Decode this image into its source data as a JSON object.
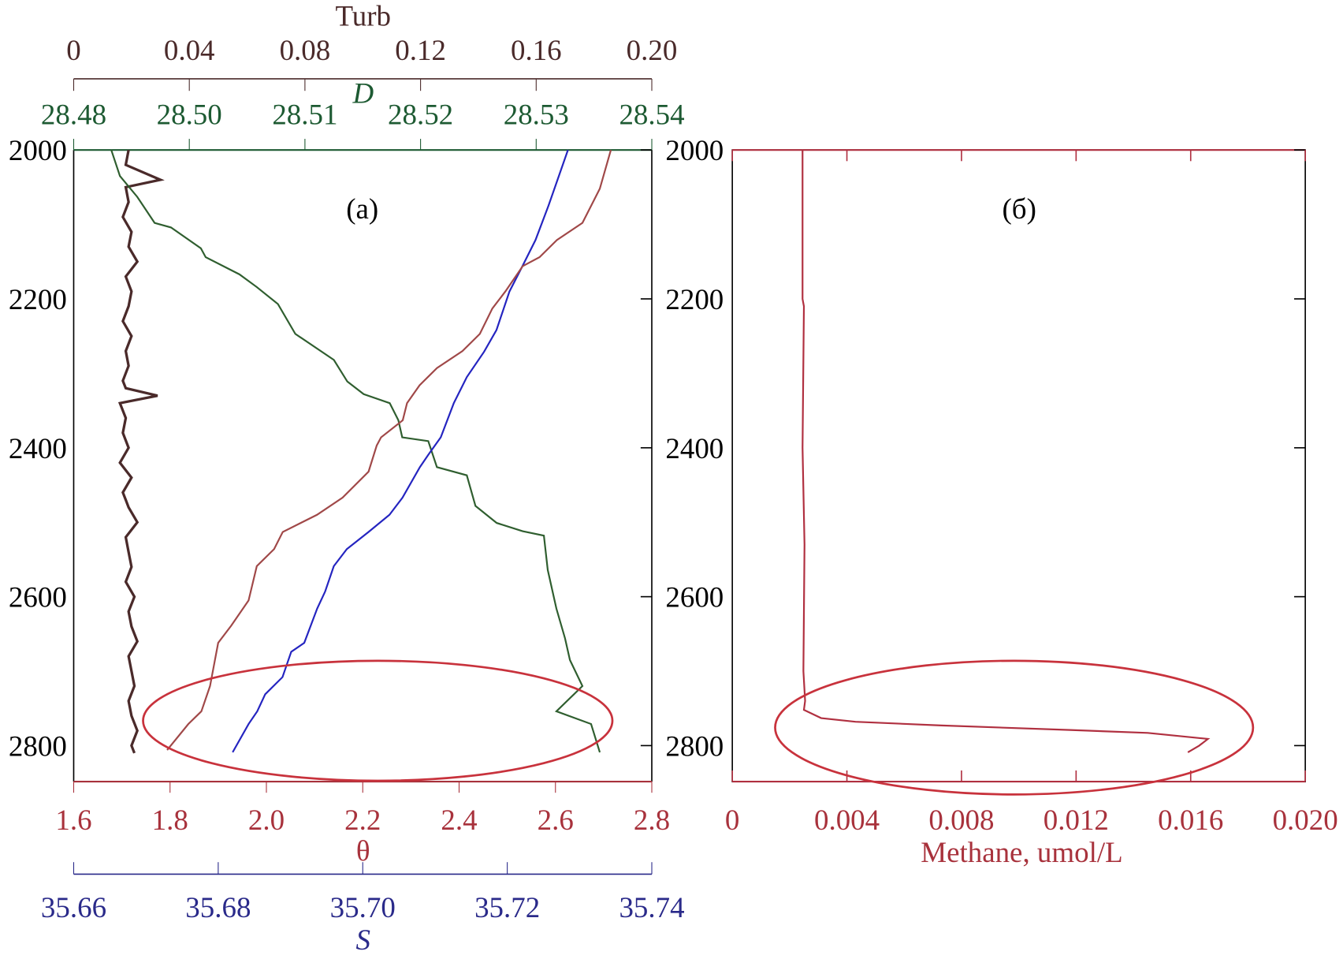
{
  "colors": {
    "turb": "#4a2a2a",
    "density": "#1d5a32",
    "theta": "#a8323c",
    "salinity": "#2a2a8a",
    "salinity_line": "#2424c0",
    "theta_line": "#a04848",
    "density_line": "#2f5e2f",
    "methane": "#b03040",
    "ellipse": "#c8323c"
  },
  "chart_data": [
    {
      "type": "line",
      "panel_label": "(а)",
      "ylabel": "",
      "ylim": [
        2850,
        2000
      ],
      "yticks": [
        "2000",
        "2200",
        "2400",
        "2600",
        "2800"
      ],
      "ytick_values": [
        2000,
        2200,
        2400,
        2600,
        2800
      ],
      "axes": {
        "turb": {
          "label": "Turb",
          "range": [
            0,
            0.2
          ],
          "ticks": [
            "0",
            "0.04",
            "0.08",
            "0.12",
            "0.16",
            "0.20"
          ]
        },
        "density": {
          "label": "D",
          "range": [
            28.48,
            28.54
          ],
          "ticks": [
            "28.48",
            "28.50",
            "28.51",
            "28.52",
            "28.53",
            "28.54"
          ]
        },
        "theta": {
          "label": "θ",
          "range": [
            1.6,
            2.8
          ],
          "ticks": [
            "1.6",
            "1.8",
            "2.0",
            "2.2",
            "2.4",
            "2.6",
            "2.8"
          ]
        },
        "salinity": {
          "label": "S",
          "range": [
            35.66,
            35.74
          ],
          "ticks": [
            "35.66",
            "35.68",
            "35.70",
            "35.72",
            "35.74"
          ]
        }
      },
      "series": [
        {
          "name": "Turb",
          "axis": "turb",
          "x": [
            0.019,
            0.018,
            0.03,
            0.018,
            0.019,
            0.017,
            0.02,
            0.019,
            0.022,
            0.018,
            0.02,
            0.019,
            0.017,
            0.02,
            0.018,
            0.019,
            0.017,
            0.018,
            0.029,
            0.016,
            0.018,
            0.017,
            0.019,
            0.016,
            0.02,
            0.017,
            0.018,
            0.019,
            0.022,
            0.018,
            0.019,
            0.02,
            0.018,
            0.021,
            0.019,
            0.02,
            0.022,
            0.019,
            0.02,
            0.021,
            0.019,
            0.02,
            0.022,
            0.02,
            0.021
          ],
          "depth": [
            2000,
            2020,
            2040,
            2050,
            2070,
            2090,
            2110,
            2130,
            2150,
            2170,
            2190,
            2210,
            2230,
            2250,
            2270,
            2290,
            2310,
            2320,
            2330,
            2340,
            2360,
            2380,
            2400,
            2420,
            2440,
            2460,
            2470,
            2480,
            2500,
            2520,
            2540,
            2560,
            2580,
            2600,
            2620,
            2640,
            2660,
            2680,
            2700,
            2720,
            2740,
            2760,
            2780,
            2800,
            2810
          ]
        },
        {
          "name": "D",
          "axis": "density",
          "x": [
            28.4839,
            28.4848,
            28.4866,
            28.4884,
            28.4901,
            28.4932,
            28.4937,
            28.4972,
            28.499,
            28.5012,
            28.503,
            28.507,
            28.5084,
            28.5101,
            28.5128,
            28.5137,
            28.5141,
            28.5168,
            28.5177,
            28.5208,
            28.5217,
            28.5239,
            28.5266,
            28.5288,
            28.5292,
            28.5301,
            28.531,
            28.5315,
            28.5328,
            28.5301,
            28.5337,
            28.5346
          ],
          "depth": [
            2000,
            2035,
            2063,
            2098,
            2104,
            2132,
            2144,
            2167,
            2184,
            2207,
            2247,
            2282,
            2311,
            2328,
            2340,
            2363,
            2386,
            2391,
            2426,
            2437,
            2478,
            2501,
            2512,
            2518,
            2564,
            2616,
            2656,
            2685,
            2720,
            2754,
            2771,
            2809
          ]
        },
        {
          "name": "S",
          "axis": "salinity",
          "x": [
            35.7284,
            35.7257,
            35.7239,
            35.7221,
            35.7203,
            35.7185,
            35.7168,
            35.7144,
            35.7126,
            35.7108,
            35.7091,
            35.7079,
            35.7055,
            35.7037,
            35.7008,
            35.6978,
            35.696,
            35.6948,
            35.6937,
            35.6919,
            35.6901,
            35.6889,
            35.6865,
            35.6854,
            35.6842,
            35.682
          ],
          "depth": [
            2000,
            2075,
            2121,
            2156,
            2190,
            2242,
            2271,
            2305,
            2340,
            2386,
            2409,
            2426,
            2467,
            2490,
            2513,
            2536,
            2559,
            2593,
            2616,
            2662,
            2674,
            2708,
            2731,
            2754,
            2771,
            2809
          ]
        },
        {
          "name": "θ",
          "axis": "theta",
          "x": [
            2.715,
            2.692,
            2.656,
            2.603,
            2.567,
            2.532,
            2.496,
            2.469,
            2.443,
            2.407,
            2.354,
            2.318,
            2.292,
            2.283,
            2.238,
            2.229,
            2.212,
            2.158,
            2.105,
            2.034,
            2.016,
            1.98,
            1.963,
            1.927,
            1.9,
            1.883,
            1.865,
            1.838,
            1.794
          ],
          "depth": [
            2000,
            2052,
            2098,
            2121,
            2144,
            2156,
            2190,
            2213,
            2247,
            2270,
            2293,
            2316,
            2340,
            2363,
            2386,
            2397,
            2432,
            2467,
            2490,
            2513,
            2536,
            2559,
            2605,
            2639,
            2662,
            2720,
            2754,
            2771,
            2806
          ]
        }
      ]
    },
    {
      "type": "line",
      "panel_label": "(б)",
      "xlabel": "Methane, umol/L",
      "xlim": [
        0,
        0.02
      ],
      "xticks": [
        "0",
        "0.004",
        "0.008",
        "0.012",
        "0.016",
        "0.020"
      ],
      "ylim": [
        2850,
        2000
      ],
      "yticks": [
        "2000",
        "2200",
        "2400",
        "2600",
        "2800"
      ],
      "ytick_values": [
        2000,
        2200,
        2400,
        2600,
        2800
      ],
      "series": [
        {
          "name": "Methane",
          "x": [
            0.00245,
            0.00245,
            0.0025,
            0.00245,
            0.00252,
            0.00248,
            0.00254,
            0.0025,
            0.0031,
            0.0043,
            0.0073,
            0.0118,
            0.0145,
            0.0166,
            0.0163,
            0.0159
          ],
          "depth": [
            2000,
            2200,
            2210,
            2400,
            2530,
            2700,
            2740,
            2752,
            2763,
            2768,
            2773,
            2779,
            2783,
            2791,
            2800,
            2809
          ]
        }
      ]
    }
  ]
}
